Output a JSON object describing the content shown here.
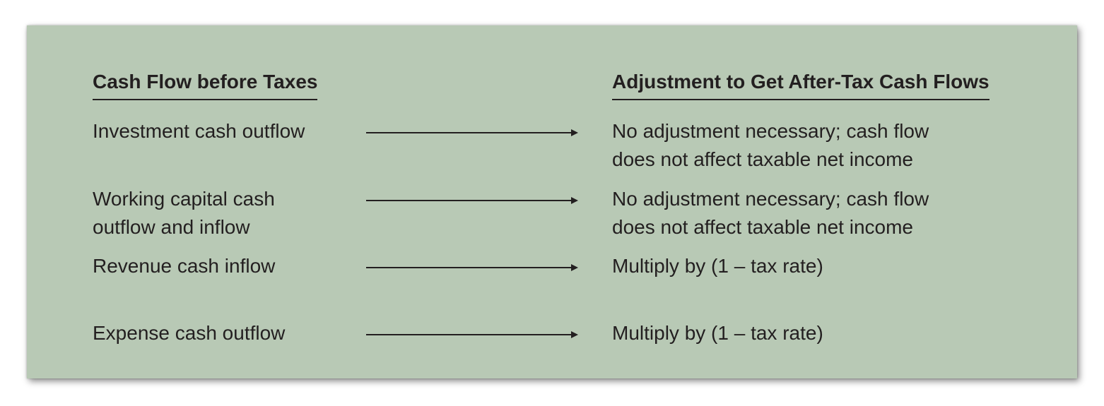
{
  "headers": {
    "left": "Cash Flow before Taxes",
    "right": "Adjustment to Get After-Tax Cash Flows"
  },
  "rows": [
    {
      "left": [
        "Investment cash outflow"
      ],
      "right": [
        "No adjustment necessary; cash flow",
        "does not affect taxable net income"
      ]
    },
    {
      "left": [
        "Working capital cash",
        "outflow and inflow"
      ],
      "right": [
        "No adjustment necessary; cash flow",
        "does not affect taxable net income"
      ]
    },
    {
      "left": [
        "Revenue cash inflow"
      ],
      "right": [
        "Multiply by (1 – tax rate)"
      ]
    },
    {
      "left": [
        "Expense cash outflow"
      ],
      "right": [
        "Multiply by (1 – tax rate)"
      ]
    }
  ],
  "colors": {
    "panel_background": "#b8c9b5",
    "text": "#231f20"
  }
}
